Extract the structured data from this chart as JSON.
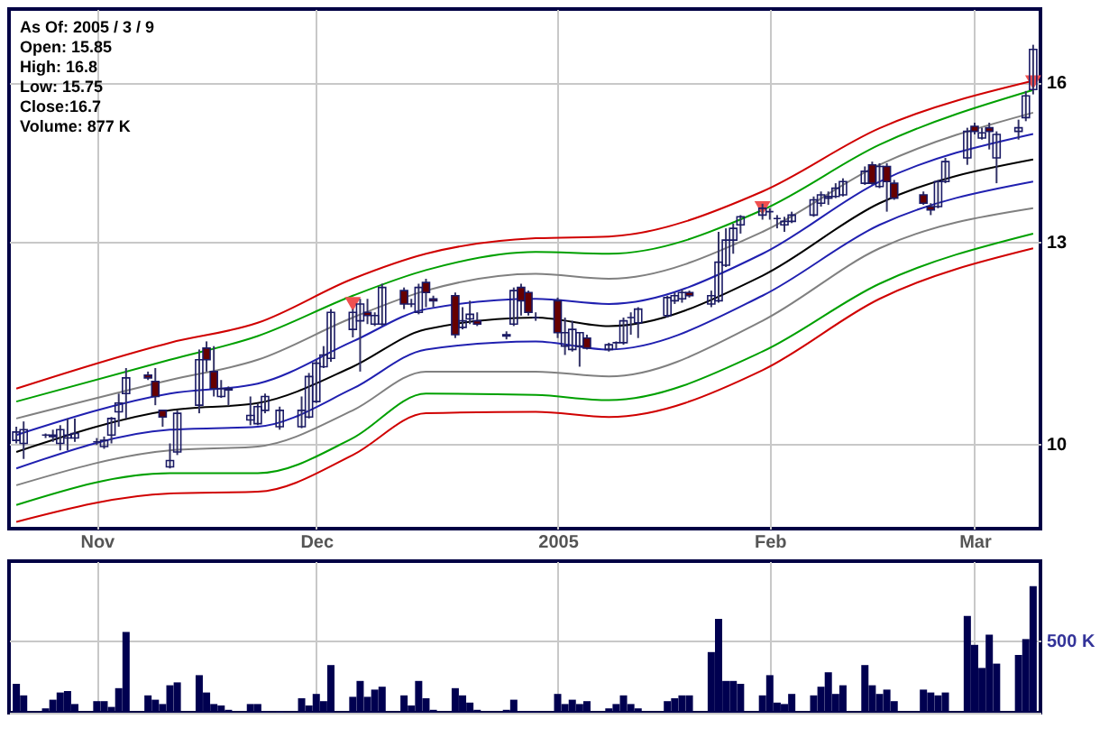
{
  "chart_data": [
    {
      "type": "candlestick",
      "log": true,
      "grid": true,
      "annotations": [
        "As Of: 2005 / 3 / 9",
        "Open: 15.85",
        "High: 16.8",
        "Low: 15.75",
        "Close:16.7",
        "Volume: 877 K"
      ],
      "xlim": [
        "2004-10-20",
        "2005-03-10"
      ],
      "xticks": [
        {
          "value": "2004-11-01",
          "label": "Nov"
        },
        {
          "value": "2004-12-01",
          "label": "Dec"
        },
        {
          "value": "2005-01-03",
          "label": "2005"
        },
        {
          "value": "2005-02-01",
          "label": "Feb"
        },
        {
          "value": "2005-03-01",
          "label": "Mar"
        }
      ],
      "ylim": [
        8.95,
        17.6
      ],
      "yticks": [
        10,
        13,
        16
      ],
      "x": [
        "2004-10-21",
        "2004-10-22",
        "2004-10-25",
        "2004-10-26",
        "2004-10-27",
        "2004-10-28",
        "2004-10-29",
        "2004-11-01",
        "2004-11-02",
        "2004-11-03",
        "2004-11-04",
        "2004-11-05",
        "2004-11-08",
        "2004-11-09",
        "2004-11-10",
        "2004-11-11",
        "2004-11-12",
        "2004-11-15",
        "2004-11-16",
        "2004-11-17",
        "2004-11-18",
        "2004-11-19",
        "2004-11-22",
        "2004-11-23",
        "2004-11-24",
        "2004-11-26",
        "2004-11-29",
        "2004-11-30",
        "2004-12-01",
        "2004-12-02",
        "2004-12-03",
        "2004-12-06",
        "2004-12-07",
        "2004-12-08",
        "2004-12-09",
        "2004-12-10",
        "2004-12-13",
        "2004-12-14",
        "2004-12-15",
        "2004-12-16",
        "2004-12-17",
        "2004-12-20",
        "2004-12-21",
        "2004-12-22",
        "2004-12-23",
        "2004-12-27",
        "2004-12-28",
        "2004-12-29",
        "2004-12-30",
        "2004-12-31",
        "2005-01-03",
        "2005-01-04",
        "2005-01-05",
        "2005-01-06",
        "2005-01-07",
        "2005-01-10",
        "2005-01-11",
        "2005-01-12",
        "2005-01-13",
        "2005-01-14",
        "2005-01-18",
        "2005-01-19",
        "2005-01-20",
        "2005-01-21",
        "2005-01-24",
        "2005-01-25",
        "2005-01-26",
        "2005-01-27",
        "2005-01-28",
        "2005-01-31",
        "2005-02-01",
        "2005-02-02",
        "2005-02-03",
        "2005-02-04",
        "2005-02-07",
        "2005-02-08",
        "2005-02-09",
        "2005-02-10",
        "2005-02-11",
        "2005-02-14",
        "2005-02-15",
        "2005-02-16",
        "2005-02-17",
        "2005-02-18",
        "2005-02-22",
        "2005-02-23",
        "2005-02-24",
        "2005-02-25",
        "2005-02-28",
        "2005-03-01",
        "2005-03-02",
        "2005-03-03",
        "2005-03-04",
        "2005-03-07",
        "2005-03-08",
        "2005-03-09"
      ],
      "ohlc": [
        [
          10.04,
          10.22,
          10.0,
          10.15
        ],
        [
          10.0,
          10.29,
          9.8,
          10.18
        ],
        [
          10.11,
          10.13,
          10.07,
          10.11
        ],
        [
          10.09,
          10.18,
          10.02,
          10.11
        ],
        [
          10.0,
          10.24,
          9.91,
          10.18
        ],
        [
          10.07,
          10.33,
          9.91,
          10.11
        ],
        [
          10.07,
          10.33,
          10.02,
          10.13
        ],
        [
          10.02,
          10.07,
          9.98,
          10.02
        ],
        [
          9.96,
          10.09,
          9.93,
          10.04
        ],
        [
          10.11,
          10.35,
          10.0,
          10.33
        ],
        [
          10.42,
          10.67,
          10.22,
          10.54
        ],
        [
          10.67,
          11.03,
          10.33,
          10.89
        ],
        [
          10.93,
          10.98,
          10.86,
          10.89
        ],
        [
          10.84,
          11.03,
          10.51,
          10.63
        ],
        [
          10.44,
          10.44,
          10.22,
          10.35
        ],
        [
          9.7,
          10.0,
          9.68,
          9.78
        ],
        [
          9.89,
          10.44,
          9.85,
          10.4
        ],
        [
          10.51,
          11.3,
          10.4,
          11.15
        ],
        [
          11.32,
          11.42,
          10.98,
          11.15
        ],
        [
          10.98,
          11.35,
          10.63,
          10.74
        ],
        [
          10.63,
          10.86,
          10.61,
          10.74
        ],
        [
          10.74,
          10.77,
          10.51,
          10.72
        ],
        [
          10.31,
          10.63,
          10.24,
          10.37
        ],
        [
          10.26,
          10.53,
          10.24,
          10.49
        ],
        [
          10.44,
          10.67,
          10.4,
          10.63
        ],
        [
          10.22,
          10.49,
          10.18,
          10.44
        ],
        [
          10.22,
          10.63,
          10.2,
          10.44
        ],
        [
          10.35,
          10.96,
          10.33,
          10.91
        ],
        [
          10.56,
          11.15,
          10.54,
          11.1
        ],
        [
          11.05,
          11.35,
          11.03,
          11.22
        ],
        [
          11.17,
          11.91,
          11.12,
          11.86
        ],
        [
          11.6,
          11.91,
          11.48,
          11.86
        ],
        [
          11.73,
          12.07,
          10.98,
          11.99
        ],
        [
          11.86,
          12.07,
          11.68,
          11.81
        ],
        [
          11.68,
          11.86,
          11.65,
          11.81
        ],
        [
          11.68,
          12.31,
          11.65,
          12.25
        ],
        [
          12.2,
          12.25,
          11.91,
          11.99
        ],
        [
          11.99,
          12.07,
          11.94,
          11.99
        ],
        [
          11.86,
          12.31,
          11.83,
          12.25
        ],
        [
          12.33,
          12.39,
          11.94,
          12.17
        ],
        [
          12.07,
          12.12,
          11.94,
          12.04
        ],
        [
          12.12,
          12.17,
          11.47,
          11.52
        ],
        [
          11.63,
          11.94,
          11.6,
          11.73
        ],
        [
          11.76,
          12.04,
          11.68,
          11.83
        ],
        [
          11.73,
          11.86,
          11.65,
          11.68
        ],
        [
          11.52,
          11.57,
          11.45,
          11.5
        ],
        [
          11.68,
          12.25,
          11.65,
          12.2
        ],
        [
          12.25,
          12.31,
          11.81,
          12.04
        ],
        [
          12.17,
          12.2,
          11.81,
          11.86
        ],
        [
          11.78,
          11.86,
          11.73,
          11.78
        ],
        [
          12.04,
          12.09,
          11.47,
          11.55
        ],
        [
          11.35,
          11.78,
          11.22,
          11.55
        ],
        [
          11.3,
          11.73,
          11.27,
          11.6
        ],
        [
          11.35,
          11.55,
          11.05,
          11.55
        ],
        [
          11.47,
          11.52,
          11.3,
          11.32
        ],
        [
          11.3,
          11.4,
          11.27,
          11.37
        ],
        [
          11.4,
          11.42,
          11.3,
          11.4
        ],
        [
          11.4,
          11.78,
          11.37,
          11.73
        ],
        [
          11.78,
          11.86,
          11.52,
          11.78
        ],
        [
          11.7,
          11.94,
          11.47,
          11.91
        ],
        [
          11.81,
          12.12,
          11.78,
          12.09
        ],
        [
          12.04,
          12.17,
          11.99,
          12.12
        ],
        [
          12.07,
          12.22,
          12.01,
          12.17
        ],
        [
          12.17,
          12.2,
          12.09,
          12.12
        ],
        [
          11.99,
          12.2,
          11.94,
          12.12
        ],
        [
          12.04,
          13.17,
          12.01,
          12.66
        ],
        [
          12.61,
          13.23,
          12.58,
          13.03
        ],
        [
          13.03,
          13.31,
          12.8,
          13.23
        ],
        [
          13.29,
          13.46,
          13.14,
          13.43
        ],
        [
          13.46,
          13.66,
          13.38,
          13.58
        ],
        [
          13.52,
          13.58,
          13.38,
          13.52
        ],
        [
          13.4,
          13.46,
          13.23,
          13.4
        ],
        [
          13.29,
          13.43,
          13.17,
          13.35
        ],
        [
          13.35,
          13.52,
          13.32,
          13.46
        ],
        [
          13.46,
          13.79,
          13.43,
          13.73
        ],
        [
          13.67,
          13.88,
          13.61,
          13.82
        ],
        [
          13.76,
          13.88,
          13.64,
          13.79
        ],
        [
          13.79,
          14.03,
          13.76,
          13.94
        ],
        [
          13.82,
          14.12,
          13.79,
          14.06
        ],
        [
          14.03,
          14.34,
          14.0,
          14.25
        ],
        [
          14.37,
          14.43,
          14.0,
          14.03
        ],
        [
          13.97,
          14.4,
          13.94,
          14.34
        ],
        [
          14.34,
          14.4,
          13.52,
          14.06
        ],
        [
          14.03,
          14.09,
          13.73,
          13.76
        ],
        [
          13.82,
          13.88,
          13.64,
          13.67
        ],
        [
          13.61,
          13.67,
          13.46,
          13.55
        ],
        [
          13.61,
          14.09,
          13.58,
          14.06
        ],
        [
          14.06,
          14.5,
          14.03,
          14.43
        ],
        [
          14.5,
          15.08,
          14.37,
          15.01
        ],
        [
          15.11,
          15.18,
          14.95,
          15.01
        ],
        [
          14.88,
          15.08,
          14.85,
          14.98
        ],
        [
          15.08,
          15.18,
          14.66,
          15.01
        ],
        [
          14.5,
          15.01,
          14.03,
          14.95
        ],
        [
          15.01,
          15.24,
          14.85,
          15.08
        ],
        [
          15.28,
          15.82,
          15.21,
          15.72
        ],
        [
          15.85,
          16.8,
          15.75,
          16.7
        ]
      ],
      "series": [
        {
          "type": "line",
          "color": "#d00000",
          "x": [
            "2004-10-21",
            "2004-11-11",
            "2004-11-23",
            "2004-12-06",
            "2004-12-16",
            "2004-12-31",
            "2005-01-10",
            "2005-01-31",
            "2005-02-16",
            "2005-03-09"
          ],
          "values": [
            10.74,
            11.4,
            11.7,
            12.39,
            12.8,
            13.06,
            13.09,
            13.88,
            15.07,
            16.03
          ]
        },
        {
          "type": "line",
          "color": "#00a000",
          "x": [
            "2004-10-21",
            "2004-11-11",
            "2004-11-23",
            "2004-12-06",
            "2004-12-16",
            "2004-12-31",
            "2005-01-10",
            "2005-01-31",
            "2005-02-16",
            "2005-03-09"
          ],
          "values": [
            10.56,
            11.15,
            11.5,
            12.12,
            12.53,
            12.83,
            12.8,
            13.55,
            14.75,
            15.84
          ]
        },
        {
          "type": "line",
          "color": "#808080",
          "x": [
            "2004-10-21",
            "2004-11-11",
            "2004-11-23",
            "2004-12-06",
            "2004-12-16",
            "2004-12-31",
            "2005-01-10",
            "2005-01-31",
            "2005-02-16",
            "2005-03-09"
          ],
          "values": [
            10.33,
            10.86,
            11.15,
            11.78,
            12.2,
            12.47,
            12.39,
            13.17,
            14.37,
            15.38
          ]
        },
        {
          "type": "line",
          "color": "#2020b0",
          "x": [
            "2004-10-21",
            "2004-11-11",
            "2004-11-23",
            "2004-12-06",
            "2004-12-16",
            "2004-12-31",
            "2005-01-10",
            "2005-01-31",
            "2005-02-16",
            "2005-03-09"
          ],
          "values": [
            10.11,
            10.67,
            10.81,
            11.42,
            11.91,
            12.07,
            11.99,
            12.8,
            14.06,
            14.96
          ]
        },
        {
          "type": "line",
          "color": "#000000",
          "x": [
            "2004-10-21",
            "2004-11-11",
            "2004-11-23",
            "2004-12-06",
            "2004-12-16",
            "2004-12-31",
            "2005-01-10",
            "2005-01-31",
            "2005-02-16",
            "2005-03-09"
          ],
          "values": [
            9.89,
            10.44,
            10.54,
            11.05,
            11.6,
            11.78,
            11.65,
            12.44,
            13.67,
            14.47
          ]
        },
        {
          "type": "line",
          "color": "#2020b0",
          "x": [
            "2004-10-21",
            "2004-11-11",
            "2004-11-23",
            "2004-12-06",
            "2004-12-16",
            "2004-12-31",
            "2005-01-10",
            "2005-01-31",
            "2005-02-16",
            "2005-03-09"
          ],
          "values": [
            9.68,
            10.18,
            10.22,
            10.74,
            11.3,
            11.42,
            11.3,
            12.12,
            13.29,
            14.06
          ]
        },
        {
          "type": "line",
          "color": "#808080",
          "x": [
            "2004-10-21",
            "2004-11-11",
            "2004-11-23",
            "2004-12-06",
            "2004-12-16",
            "2004-12-31",
            "2005-01-10",
            "2005-01-31",
            "2005-02-16",
            "2005-03-09"
          ],
          "values": [
            9.47,
            9.91,
            9.96,
            10.44,
            10.98,
            10.98,
            10.91,
            11.73,
            12.89,
            13.58
          ]
        },
        {
          "type": "line",
          "color": "#00a000",
          "x": [
            "2004-10-21",
            "2004-11-11",
            "2004-11-23",
            "2004-12-06",
            "2004-12-16",
            "2004-12-31",
            "2005-01-10",
            "2005-01-31",
            "2005-02-16",
            "2005-03-09"
          ],
          "values": [
            9.23,
            9.62,
            9.62,
            10.07,
            10.67,
            10.65,
            10.58,
            11.27,
            12.31,
            13.14
          ]
        },
        {
          "type": "line",
          "color": "#d00000",
          "x": [
            "2004-10-21",
            "2004-11-11",
            "2004-11-23",
            "2004-12-06",
            "2004-12-16",
            "2004-12-31",
            "2005-01-10",
            "2005-01-31",
            "2005-02-16",
            "2005-03-09"
          ],
          "values": [
            9.03,
            9.37,
            9.39,
            9.85,
            10.4,
            10.42,
            10.35,
            11.0,
            12.07,
            12.89
          ]
        },
        {
          "type": "scatter",
          "marker": "triangle",
          "color": "#f05050",
          "x": [
            "2004-12-06",
            "2005-01-31",
            "2005-03-09"
          ],
          "values": [
            11.99,
            13.58,
            16.0
          ]
        }
      ]
    },
    {
      "type": "bar",
      "color": "#000050",
      "grid": true,
      "tick_labels": "y",
      "xlim": [
        "2004-10-20",
        "2005-03-10"
      ],
      "xticks": [
        {
          "value": "2004-11-01",
          "label": null
        },
        {
          "value": "2004-12-01",
          "label": null
        },
        {
          "value": "2005-01-03",
          "label": null
        },
        {
          "value": "2005-02-01",
          "label": null
        },
        {
          "value": "2005-03-01",
          "label": null
        }
      ],
      "ylim": [
        0,
        1050
      ],
      "yticks": [
        {
          "value": 0,
          "label": null
        },
        {
          "value": 500,
          "label": "500 K"
        }
      ],
      "x": [
        "2004-10-21",
        "2004-10-22",
        "2004-10-25",
        "2004-10-26",
        "2004-10-27",
        "2004-10-28",
        "2004-10-29",
        "2004-11-01",
        "2004-11-02",
        "2004-11-03",
        "2004-11-04",
        "2004-11-05",
        "2004-11-08",
        "2004-11-09",
        "2004-11-10",
        "2004-11-11",
        "2004-11-12",
        "2004-11-15",
        "2004-11-16",
        "2004-11-17",
        "2004-11-18",
        "2004-11-19",
        "2004-11-22",
        "2004-11-23",
        "2004-11-24",
        "2004-11-26",
        "2004-11-29",
        "2004-11-30",
        "2004-12-01",
        "2004-12-02",
        "2004-12-03",
        "2004-12-06",
        "2004-12-07",
        "2004-12-08",
        "2004-12-09",
        "2004-12-10",
        "2004-12-13",
        "2004-12-14",
        "2004-12-15",
        "2004-12-16",
        "2004-12-17",
        "2004-12-20",
        "2004-12-21",
        "2004-12-22",
        "2004-12-23",
        "2004-12-27",
        "2004-12-28",
        "2004-12-29",
        "2004-12-30",
        "2004-12-31",
        "2005-01-03",
        "2005-01-04",
        "2005-01-05",
        "2005-01-06",
        "2005-01-07",
        "2005-01-10",
        "2005-01-11",
        "2005-01-12",
        "2005-01-13",
        "2005-01-14",
        "2005-01-18",
        "2005-01-19",
        "2005-01-20",
        "2005-01-21",
        "2005-01-24",
        "2005-01-25",
        "2005-01-26",
        "2005-01-27",
        "2005-01-28",
        "2005-01-31",
        "2005-02-01",
        "2005-02-02",
        "2005-02-03",
        "2005-02-04",
        "2005-02-07",
        "2005-02-08",
        "2005-02-09",
        "2005-02-10",
        "2005-02-11",
        "2005-02-14",
        "2005-02-15",
        "2005-02-16",
        "2005-02-17",
        "2005-02-18",
        "2005-02-22",
        "2005-02-23",
        "2005-02-24",
        "2005-02-25",
        "2005-02-28",
        "2005-03-01",
        "2005-03-02",
        "2005-03-03",
        "2005-03-04",
        "2005-03-07",
        "2005-03-08",
        "2005-03-09"
      ],
      "values": [
        200,
        120,
        30,
        90,
        140,
        150,
        60,
        80,
        80,
        40,
        170,
        560,
        120,
        90,
        60,
        190,
        210,
        260,
        140,
        60,
        50,
        20,
        60,
        60,
        10,
        10,
        100,
        50,
        130,
        80,
        330,
        110,
        220,
        110,
        160,
        180,
        120,
        50,
        220,
        100,
        20,
        170,
        120,
        70,
        20,
        20,
        90,
        10,
        10,
        10,
        130,
        60,
        90,
        60,
        80,
        30,
        60,
        120,
        60,
        30,
        80,
        100,
        120,
        120,
        420,
        650,
        220,
        220,
        200,
        120,
        260,
        70,
        60,
        130,
        120,
        180,
        280,
        130,
        190,
        330,
        190,
        130,
        160,
        80,
        160,
        140,
        120,
        140,
        670,
        470,
        310,
        540,
        340,
        400,
        510,
        877
      ]
    }
  ]
}
